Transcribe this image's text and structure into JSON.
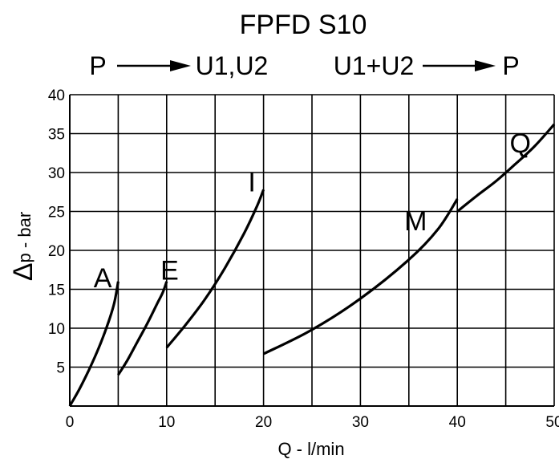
{
  "header": {
    "title": "FPFD S10",
    "flow_left_from": "P",
    "flow_left_to": "U1,U2",
    "flow_right_from": "U1+U2",
    "flow_right_to": "P"
  },
  "chart_data": {
    "type": "line",
    "title": "FPFD S10",
    "xlabel": "Q - l/min",
    "ylabel_symbol": "Δ",
    "ylabel": "p - bar",
    "xlim": [
      0,
      50
    ],
    "ylim": [
      0,
      40
    ],
    "x_ticks": [
      0,
      10,
      20,
      30,
      40,
      50
    ],
    "y_ticks": [
      5,
      10,
      15,
      20,
      25,
      30,
      35,
      40
    ],
    "x_grid": [
      5,
      10,
      15,
      20,
      25,
      30,
      35,
      40,
      45,
      50
    ],
    "y_grid": [
      5,
      10,
      15,
      20,
      25,
      30,
      35,
      40
    ],
    "grid": true,
    "series": [
      {
        "name": "A",
        "label_at": [
          3.4,
          16.5
        ],
        "x": [
          0,
          1,
          2,
          3,
          4,
          4.6,
          5
        ],
        "y": [
          0,
          2.2,
          4.7,
          7.5,
          10.8,
          13.3,
          16
        ]
      },
      {
        "name": "E",
        "label_at": [
          10.3,
          17.5
        ],
        "x": [
          5,
          6,
          7,
          8,
          9,
          9.6,
          10
        ],
        "y": [
          4,
          6,
          8.3,
          10.6,
          13.1,
          14.6,
          16
        ]
      },
      {
        "name": "I",
        "label_at": [
          18.8,
          28.8
        ],
        "x": [
          10,
          12,
          14,
          16,
          18,
          19.3,
          20
        ],
        "y": [
          7.5,
          10.5,
          13.8,
          17.7,
          22.2,
          25.6,
          27.8
        ]
      },
      {
        "name": "M",
        "label_at": [
          35.7,
          23.8
        ],
        "x": [
          20,
          25,
          30,
          35,
          38,
          40
        ],
        "y": [
          6.7,
          9.8,
          13.8,
          18.8,
          22.7,
          26.6
        ]
      },
      {
        "name": "Q",
        "label_at": [
          46.5,
          33.8
        ],
        "x": [
          40,
          42,
          44,
          46,
          48,
          50
        ],
        "y": [
          25,
          27,
          28.9,
          31.1,
          33.4,
          36.2
        ]
      }
    ],
    "line_color": "#000000",
    "grid_color": "#000000"
  }
}
